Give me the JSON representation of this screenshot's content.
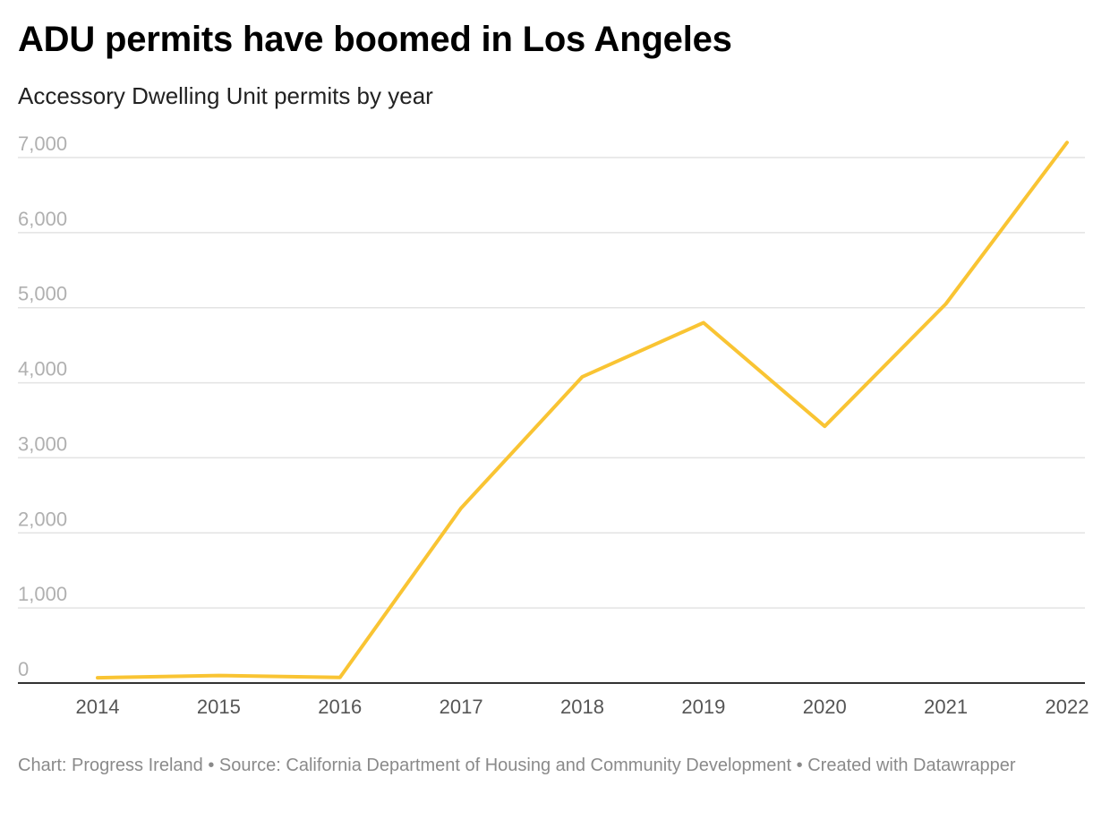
{
  "header": {
    "title": "ADU permits have boomed in Los Angeles",
    "subtitle": "Accessory Dwelling Unit permits by year"
  },
  "footer": {
    "credit": "Chart: Progress Ireland",
    "separator": " • ",
    "source": "Source: California Department of Housing and Community Development",
    "created_with": "Created with Datawrapper"
  },
  "chart_data": {
    "type": "line",
    "title": "ADU permits have boomed in Los Angeles",
    "subtitle": "Accessory Dwelling Unit permits by year",
    "xlabel": "",
    "ylabel": "",
    "categories": [
      "2014",
      "2015",
      "2016",
      "2017",
      "2018",
      "2019",
      "2020",
      "2021",
      "2022"
    ],
    "series": [
      {
        "name": "ADU permits",
        "color": "#f9c433",
        "values": [
          70,
          100,
          75,
          2330,
          4080,
          4800,
          3420,
          5050,
          7200
        ]
      }
    ],
    "ylim": [
      0,
      7000
    ],
    "yticks": [
      0,
      1000,
      2000,
      3000,
      4000,
      5000,
      6000,
      7000
    ],
    "ytick_labels": [
      "0",
      "1,000",
      "2,000",
      "3,000",
      "4,000",
      "5,000",
      "6,000",
      "7,000"
    ],
    "grid": true,
    "gridline_color": "#e3e3e3",
    "baseline_color": "#333333"
  }
}
